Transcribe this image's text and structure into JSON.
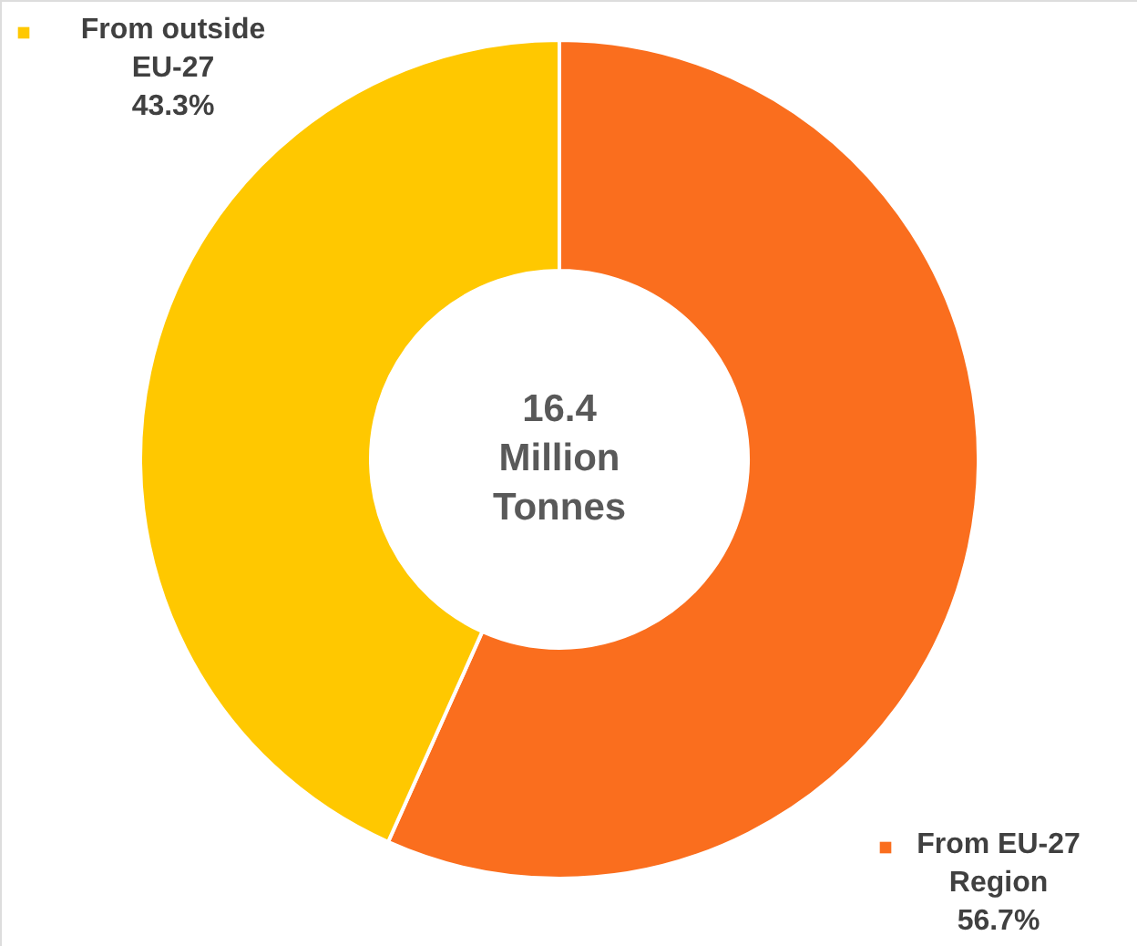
{
  "chart_data": {
    "type": "donut",
    "categories": [
      "From EU-27\nRegion",
      "From outside\nEU-27"
    ],
    "values": [
      56.7,
      43.3
    ],
    "colors": [
      "#fa6e1e",
      "#ffc800"
    ],
    "value_labels": [
      "56.7%",
      "43.3%"
    ],
    "annotations": [
      "16.4\nMillion\nTonnes"
    ],
    "legend": "top left"
  }
}
